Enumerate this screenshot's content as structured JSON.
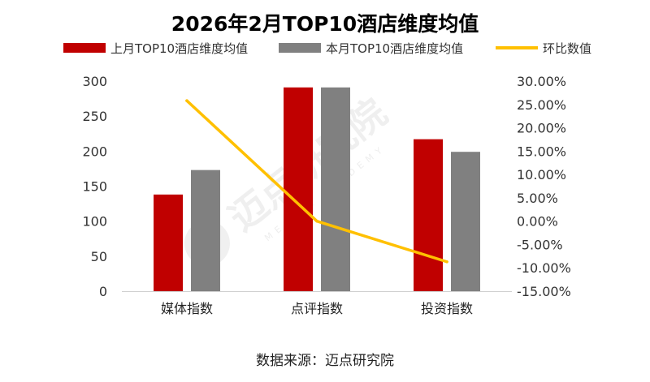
{
  "chart_data": {
    "type": "bar",
    "title": "2026年2月TOP10酒店维度均值",
    "categories": [
      "媒体指数",
      "点评指数",
      "投资指数"
    ],
    "series": [
      {
        "name": "上月TOP10酒店维度均值",
        "kind": "bar",
        "axis": "left",
        "color": "#C00000",
        "values": [
          138,
          291,
          217
        ]
      },
      {
        "name": "本月TOP10酒店维度均值",
        "kind": "bar",
        "axis": "left",
        "color": "#808080",
        "values": [
          173,
          291,
          199
        ]
      },
      {
        "name": "环比数值",
        "kind": "line",
        "axis": "right",
        "color": "#FFC000",
        "values": [
          25.8,
          0.0,
          -8.7
        ]
      }
    ],
    "left_axis": {
      "min": 0,
      "max": 300,
      "step": 50,
      "ticks": [
        "0",
        "50",
        "100",
        "150",
        "200",
        "250",
        "300"
      ]
    },
    "right_axis": {
      "min": -15,
      "max": 30,
      "step": 5,
      "ticks": [
        "-15.00%",
        "-10.00%",
        "-5.00%",
        "0.00%",
        "5.00%",
        "10.00%",
        "15.00%",
        "20.00%",
        "25.00%",
        "30.00%"
      ]
    },
    "legend_position": "top",
    "grid": false
  },
  "source": "数据来源：迈点研究院",
  "watermark": {
    "text": "迈点研究院",
    "sub": "MEADIN ACADEMY"
  }
}
